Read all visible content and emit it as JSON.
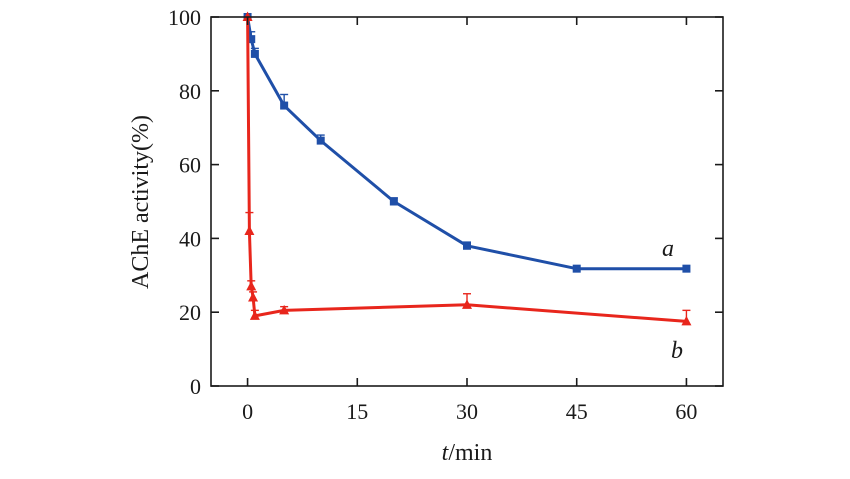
{
  "chart_data": {
    "type": "line",
    "title": "",
    "xlabel_italic": "t",
    "xlabel_rest": "/min",
    "ylabel": "AChE activity(%)",
    "xlim": [
      -5,
      65
    ],
    "ylim": [
      0,
      100
    ],
    "xticks": [
      0,
      15,
      30,
      45,
      60
    ],
    "yticks": [
      0,
      20,
      40,
      60,
      80,
      100
    ],
    "xtick_labels": [
      "0",
      "15",
      "30",
      "45",
      "60"
    ],
    "ytick_labels": [
      "0",
      "20",
      "40",
      "60",
      "80",
      "100"
    ],
    "grid": false,
    "series": [
      {
        "name": "a",
        "color": "#1f4fa8",
        "marker": "square",
        "x": [
          0,
          0.5,
          1,
          5,
          10,
          20,
          30,
          45,
          60
        ],
        "y": [
          100,
          94,
          90,
          76,
          66.5,
          50,
          38,
          31.8,
          31.8
        ],
        "err": [
          0,
          2,
          1.5,
          3,
          1.5,
          1,
          1,
          0,
          0
        ]
      },
      {
        "name": "b",
        "color": "#e8261c",
        "marker": "triangle",
        "x": [
          0,
          0.25,
          0.5,
          0.75,
          1,
          5,
          30,
          60
        ],
        "y": [
          100,
          42,
          27,
          24,
          19,
          20.5,
          22,
          17.5
        ],
        "err": [
          0,
          5,
          1.5,
          1.5,
          1.5,
          1,
          3,
          3
        ]
      }
    ],
    "annotations": [
      {
        "text": "a",
        "series": "a"
      },
      {
        "text": "b",
        "series": "b"
      }
    ]
  }
}
